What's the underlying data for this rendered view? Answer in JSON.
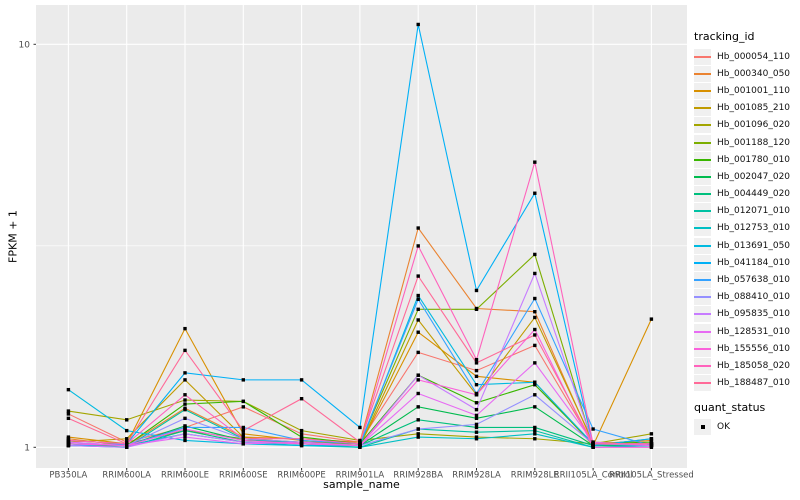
{
  "ui": {
    "background": "#FFFFFF",
    "panel_bg": "#EBEBEB",
    "grid_color": "#FFFFFF",
    "axis_text_color": "#4D4D4D",
    "tick_color": "#333333",
    "point_color": "#000000",
    "legend_key_bg": "#F0F0F0"
  },
  "chart_data": {
    "type": "line",
    "title": "",
    "xlabel": "sample_name",
    "ylabel": "FPKM + 1",
    "y_scale": "log10",
    "ylim": [
      0.93,
      12.5
    ],
    "y_major_ticks": [
      1,
      10
    ],
    "y_tick_labels": [
      "1",
      "10"
    ],
    "y_minor_gridlines": [
      3.162
    ],
    "grid": true,
    "legend_position": "right",
    "legend_title": "tracking_id",
    "point_legend": {
      "title": "quant_status",
      "label": "OK"
    },
    "categories": [
      "PB350LA",
      "RRIM600LA",
      "RRIM600LE",
      "RRIM600SE",
      "RRIM600PE",
      "RRIM901LA",
      "RRIM928BA",
      "RRIM928LA",
      "RRIM928LE",
      "RRII105LA_Control",
      "RRII105LA_Stressed"
    ],
    "series": [
      {
        "name": "Hb_000054_110",
        "color": "#F8766D",
        "values": [
          1.21,
          1.03,
          1.12,
          1.26,
          1.08,
          1.03,
          1.72,
          1.55,
          1.79,
          1.02,
          1.02
        ]
      },
      {
        "name": "Hb_000340_050",
        "color": "#EA8331",
        "values": [
          1.05,
          1.01,
          1.25,
          1.06,
          1.05,
          1.03,
          3.5,
          2.21,
          2.17,
          1.02,
          1.04
        ]
      },
      {
        "name": "Hb_001001_110",
        "color": "#D89000",
        "values": [
          1.06,
          1.02,
          1.97,
          1.08,
          1.04,
          1.01,
          1.93,
          1.5,
          1.45,
          1.01,
          2.08
        ]
      },
      {
        "name": "Hb_001085_210",
        "color": "#C09B00",
        "values": [
          1.03,
          1.05,
          1.47,
          1.06,
          1.02,
          1.01,
          2.07,
          1.35,
          2.1,
          1.03,
          1.02
        ]
      },
      {
        "name": "Hb_001096_020",
        "color": "#A3A500",
        "values": [
          1.23,
          1.17,
          1.31,
          1.3,
          1.1,
          1.04,
          1.08,
          1.06,
          1.05,
          1.02,
          1.08
        ]
      },
      {
        "name": "Hb_001188_120",
        "color": "#7CAE00",
        "values": [
          1.04,
          1.02,
          1.1,
          1.05,
          1.03,
          1.02,
          2.2,
          2.2,
          3.01,
          1.01,
          1.05
        ]
      },
      {
        "name": "Hb_001780_010",
        "color": "#39B600",
        "values": [
          1.02,
          1.01,
          1.28,
          1.3,
          1.06,
          1.02,
          1.51,
          1.29,
          1.43,
          1.02,
          1.03
        ]
      },
      {
        "name": "Hb_002047_020",
        "color": "#00BB4E",
        "values": [
          1.01,
          1.01,
          1.13,
          1.04,
          1.03,
          1.01,
          1.26,
          1.18,
          1.26,
          1.01,
          1.02
        ]
      },
      {
        "name": "Hb_004449_020",
        "color": "#00BF7D",
        "values": [
          1.02,
          1.0,
          1.1,
          1.03,
          1.02,
          1.01,
          1.17,
          1.12,
          1.12,
          1.01,
          1.01
        ]
      },
      {
        "name": "Hb_012071_010",
        "color": "#00C1A3",
        "values": [
          1.01,
          1.0,
          1.24,
          1.05,
          1.02,
          1.0,
          1.11,
          1.09,
          1.1,
          1.0,
          1.01
        ]
      },
      {
        "name": "Hb_012753_010",
        "color": "#00BFC4",
        "values": [
          1.02,
          1.01,
          1.08,
          1.03,
          1.01,
          1.0,
          1.06,
          1.05,
          1.08,
          1.0,
          1.01
        ]
      },
      {
        "name": "Hb_013691_050",
        "color": "#00BAE0",
        "values": [
          1.39,
          1.1,
          1.04,
          1.02,
          1.01,
          1.01,
          2.38,
          1.43,
          1.45,
          1.02,
          1.02
        ]
      },
      {
        "name": "Hb_041184_010",
        "color": "#00B0F6",
        "values": [
          1.01,
          1.02,
          1.53,
          1.47,
          1.47,
          1.12,
          11.2,
          2.45,
          4.27,
          1.01,
          1.05
        ]
      },
      {
        "name": "Hb_057638_010",
        "color": "#35A2FF",
        "values": [
          1.03,
          1.01,
          1.12,
          1.12,
          1.04,
          1.02,
          2.33,
          1.36,
          2.34,
          1.11,
          1.01
        ]
      },
      {
        "name": "Hb_088410_010",
        "color": "#9590FF",
        "values": [
          1.02,
          1.01,
          1.18,
          1.05,
          1.03,
          1.01,
          1.11,
          1.14,
          1.35,
          1.02,
          1.01
        ]
      },
      {
        "name": "Hb_095835_010",
        "color": "#C77CFF",
        "values": [
          1.01,
          1.0,
          1.08,
          1.03,
          1.02,
          1.01,
          1.51,
          1.24,
          2.7,
          1.02,
          1.02
        ]
      },
      {
        "name": "Hb_128531_010",
        "color": "#E76BF3",
        "values": [
          1.03,
          1.01,
          1.06,
          1.02,
          1.03,
          1.01,
          1.36,
          1.2,
          1.62,
          1.03,
          1.01
        ]
      },
      {
        "name": "Hb_155556_010",
        "color": "#FA62DB",
        "values": [
          1.02,
          1.01,
          1.11,
          1.04,
          1.02,
          1.01,
          1.47,
          1.35,
          1.96,
          1.0,
          1.0
        ]
      },
      {
        "name": "Hb_185058_020",
        "color": "#FF62BC",
        "values": [
          1.04,
          1.02,
          1.35,
          1.05,
          1.05,
          1.02,
          3.16,
          1.65,
          5.1,
          1.02,
          1.02
        ]
      },
      {
        "name": "Hb_188487_010",
        "color": "#FF6A98",
        "values": [
          1.18,
          1.02,
          1.74,
          1.1,
          1.32,
          1.03,
          2.66,
          1.62,
          1.9,
          1.02,
          1.02
        ]
      }
    ]
  }
}
